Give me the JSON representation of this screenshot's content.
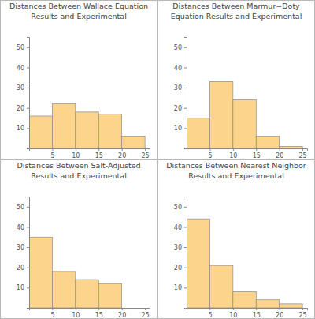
{
  "chart_data": [
    {
      "type": "histogram",
      "title": "Distances Between Wallace Equation\nResults and Experimental",
      "bins": [
        0,
        5,
        10,
        15,
        20,
        25
      ],
      "values": [
        16,
        22,
        18,
        17,
        6
      ],
      "color": "#fcd48c",
      "xlim": [
        0,
        26
      ],
      "ylim": [
        0,
        55
      ],
      "xticks": [
        5,
        10,
        15,
        20,
        25
      ],
      "yticks": [
        10,
        20,
        30,
        40,
        50
      ]
    },
    {
      "type": "histogram",
      "title": "Distances Between Marmur−Doty\nEquation Results and Experimental",
      "bins": [
        0,
        5,
        10,
        15,
        20,
        25
      ],
      "values": [
        15,
        33,
        24,
        6,
        1
      ],
      "color": "#fcd48c",
      "xlim": [
        0,
        26
      ],
      "ylim": [
        0,
        55
      ],
      "xticks": [
        5,
        10,
        15,
        20,
        25
      ],
      "yticks": [
        10,
        20,
        30,
        40,
        50
      ]
    },
    {
      "type": "histogram",
      "title": "Distances Between Salt-Adjusted\nResults and Experimental",
      "bins": [
        0,
        5,
        10,
        15,
        20
      ],
      "values": [
        35,
        18,
        14,
        12
      ],
      "color": "#fcd48c",
      "xlim": [
        0,
        26
      ],
      "ylim": [
        0,
        55
      ],
      "xticks": [
        5,
        10,
        15,
        20,
        25
      ],
      "yticks": [
        10,
        20,
        30,
        40,
        50
      ]
    },
    {
      "type": "histogram",
      "title": "Distances Between Nearest Neighbor\nResults and Experimental",
      "bins": [
        0,
        5,
        10,
        15,
        20,
        25
      ],
      "values": [
        44,
        21,
        8,
        4,
        2
      ],
      "color": "#fcd48c",
      "xlim": [
        0,
        26
      ],
      "ylim": [
        0,
        55
      ],
      "xticks": [
        5,
        10,
        15,
        20,
        25
      ],
      "yticks": [
        10,
        20,
        30,
        40,
        50
      ]
    }
  ]
}
